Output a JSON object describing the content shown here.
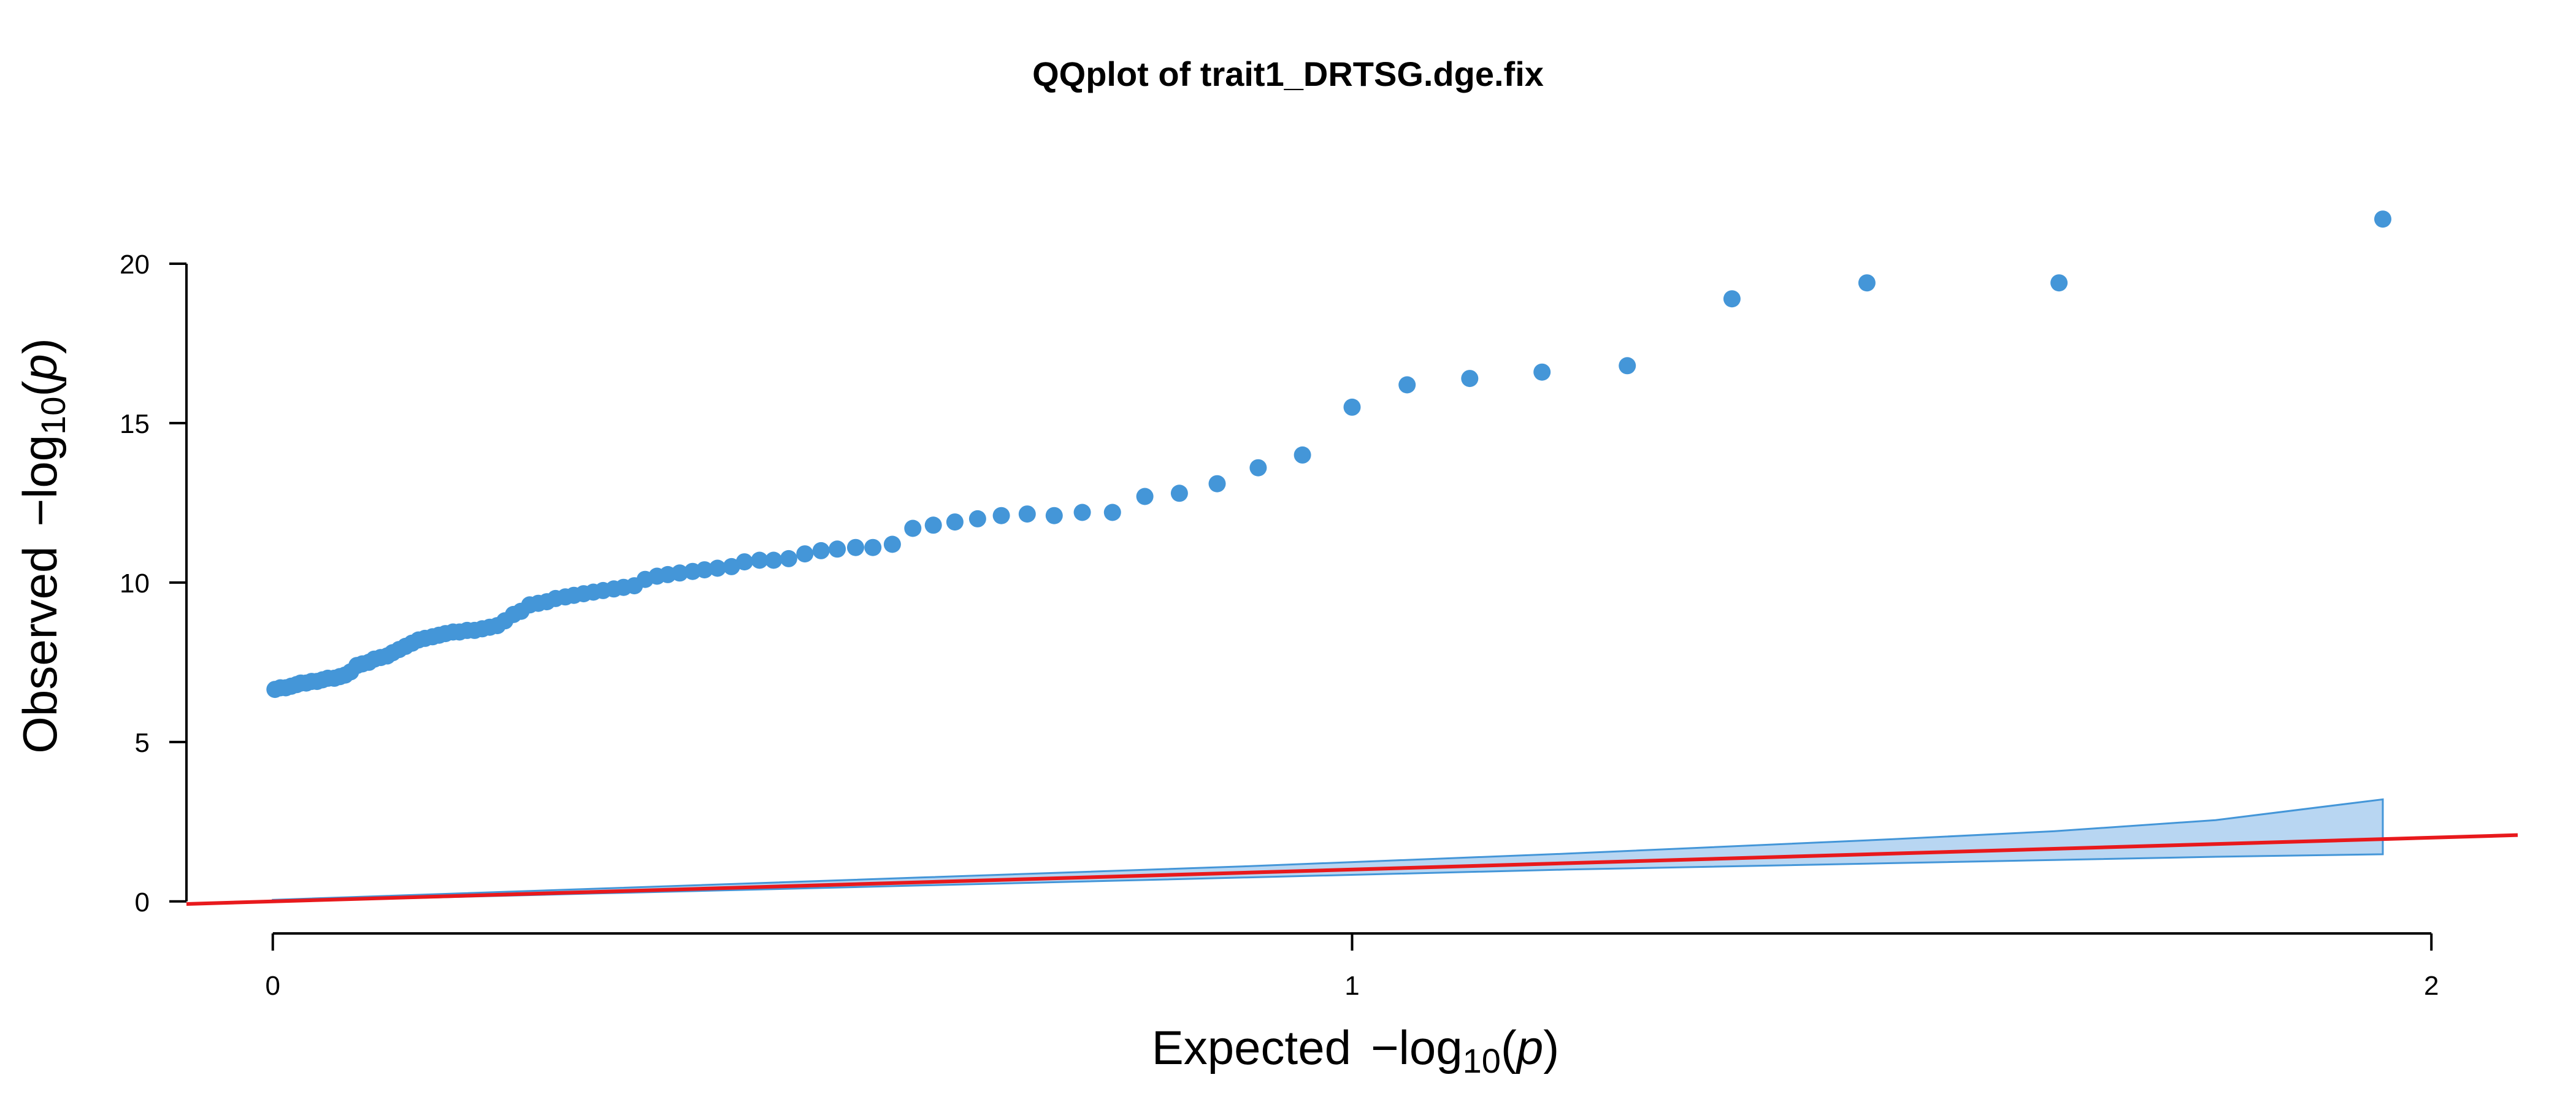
{
  "chart_data": {
    "type": "scatter",
    "title": "QQplot of trait1_DRTSG.dge.fix",
    "xlabel": {
      "prefix": "Expected",
      "math": "−log",
      "sub": "10",
      "arg_open": "(",
      "arg": "p",
      "arg_close": ")"
    },
    "ylabel": {
      "prefix": "Observed",
      "math": "−log",
      "sub": "10",
      "arg_open": "(",
      "arg": "p",
      "arg_close": ")"
    },
    "xlim": [
      -0.08,
      2.08
    ],
    "ylim": [
      -0.1,
      22.5
    ],
    "x_ticks": [
      0,
      1,
      2
    ],
    "x_tick_labels": [
      "0",
      "1",
      "2"
    ],
    "y_ticks": [
      0,
      5,
      10,
      15,
      20
    ],
    "y_tick_labels": [
      "0",
      "5",
      "10",
      "15",
      "20"
    ],
    "grid": false,
    "colors": {
      "points": "#4496d8",
      "reference_line": "#e8191c",
      "confidence_band_fill": "#b8d6f2",
      "confidence_band_edge": "#4496d8"
    },
    "reference_line": {
      "slope": 1,
      "intercept": 0
    },
    "confidence_band": {
      "x": [
        0,
        0.3,
        0.6,
        0.9,
        1.2,
        1.5,
        1.65,
        1.8,
        1.955
      ],
      "upper": [
        0.05,
        0.4,
        0.75,
        1.1,
        1.5,
        1.95,
        2.2,
        2.55,
        3.2
      ],
      "lower": [
        0.0,
        0.25,
        0.5,
        0.75,
        1.0,
        1.2,
        1.3,
        1.4,
        1.48
      ]
    },
    "points": {
      "x": [
        1.955,
        1.655,
        1.477,
        1.352,
        1.255,
        1.176,
        1.109,
        1.051,
        1.0,
        0.954,
        0.913,
        0.875,
        0.84,
        0.808,
        0.778,
        0.75,
        0.724,
        0.699,
        0.675,
        0.653,
        0.632,
        0.612,
        0.593,
        0.574,
        0.556,
        0.54,
        0.523,
        0.508,
        0.493,
        0.478,
        0.464,
        0.451,
        0.437,
        0.425,
        0.412,
        0.4,
        0.389,
        0.377,
        0.366,
        0.356,
        0.345,
        0.335,
        0.325,
        0.316,
        0.306,
        0.297,
        0.288,
        0.279,
        0.271,
        0.262,
        0.254,
        0.246,
        0.238,
        0.23,
        0.223,
        0.215,
        0.208,
        0.201,
        0.194,
        0.187,
        0.18,
        0.173,
        0.167,
        0.16,
        0.154,
        0.148,
        0.141,
        0.135,
        0.129,
        0.123,
        0.117,
        0.111,
        0.106,
        0.1,
        0.094,
        0.089,
        0.083,
        0.078,
        0.072,
        0.067,
        0.062,
        0.057,
        0.051,
        0.046,
        0.041,
        0.036,
        0.031,
        0.026,
        0.022,
        0.017,
        0.012,
        0.007,
        0.002
      ],
      "y": [
        21.4,
        19.4,
        19.4,
        18.9,
        16.8,
        16.6,
        16.4,
        16.2,
        15.5,
        14.0,
        13.6,
        13.1,
        12.8,
        12.7,
        12.2,
        12.2,
        12.1,
        12.15,
        12.1,
        12.0,
        11.9,
        11.8,
        11.7,
        11.2,
        11.1,
        11.1,
        11.05,
        11.0,
        10.9,
        10.75,
        10.7,
        10.7,
        10.65,
        10.5,
        10.45,
        10.4,
        10.35,
        10.3,
        10.25,
        10.2,
        10.1,
        9.9,
        9.85,
        9.8,
        9.75,
        9.7,
        9.65,
        9.6,
        9.55,
        9.5,
        9.4,
        9.35,
        9.3,
        9.1,
        9.0,
        8.8,
        8.65,
        8.6,
        8.55,
        8.5,
        8.5,
        8.45,
        8.45,
        8.4,
        8.35,
        8.3,
        8.25,
        8.2,
        8.1,
        8.0,
        7.9,
        7.8,
        7.7,
        7.65,
        7.6,
        7.5,
        7.45,
        7.4,
        7.2,
        7.1,
        7.05,
        7.0,
        7.0,
        6.95,
        6.9,
        6.9,
        6.85,
        6.85,
        6.8,
        6.75,
        6.7,
        6.7,
        6.65
      ]
    }
  }
}
